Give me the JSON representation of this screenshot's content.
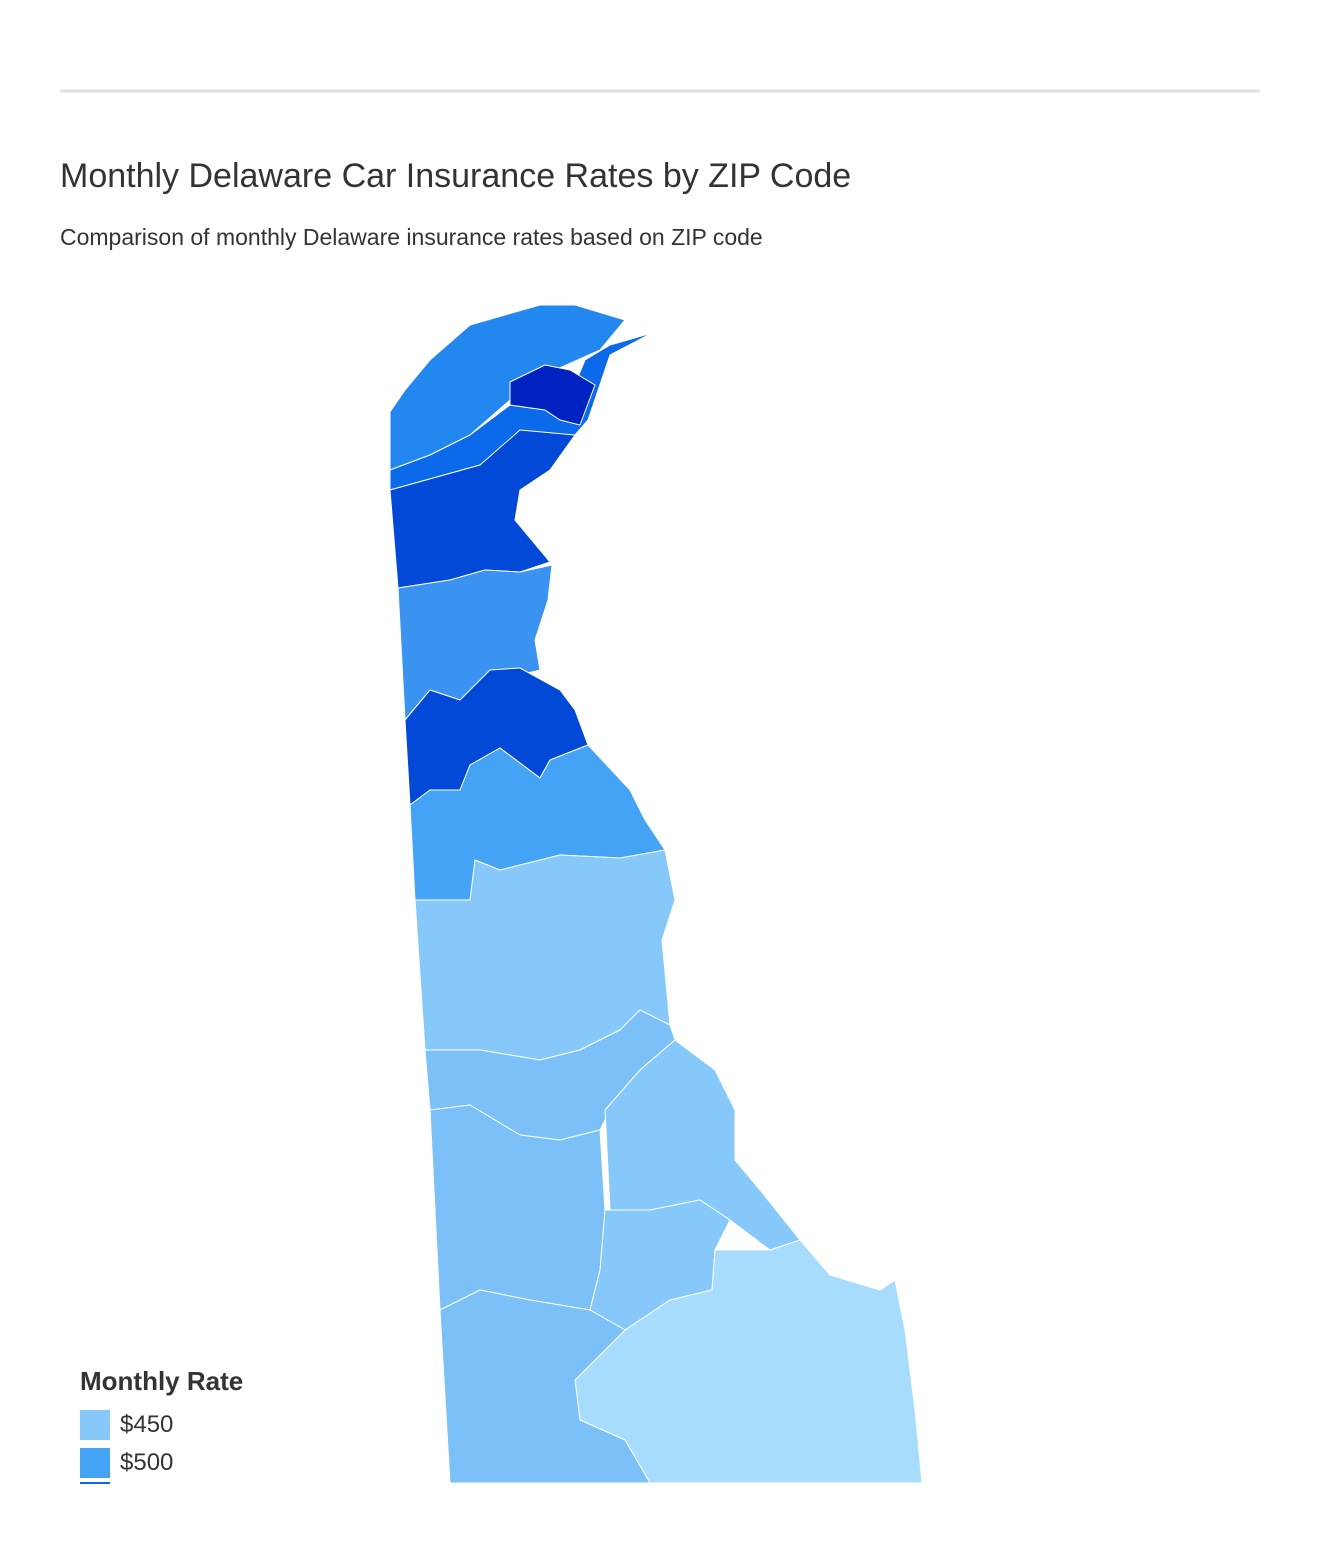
{
  "header": {
    "title": "Monthly Delaware Car Insurance Rates by ZIP Code",
    "subtitle": "Comparison of monthly Delaware insurance rates based on ZIP code"
  },
  "legend": {
    "title": "Monthly Rate",
    "items": [
      {
        "label": "$450",
        "color": "#86c8f9"
      },
      {
        "label": "$500",
        "color": "#45a3f5"
      }
    ]
  }
}
